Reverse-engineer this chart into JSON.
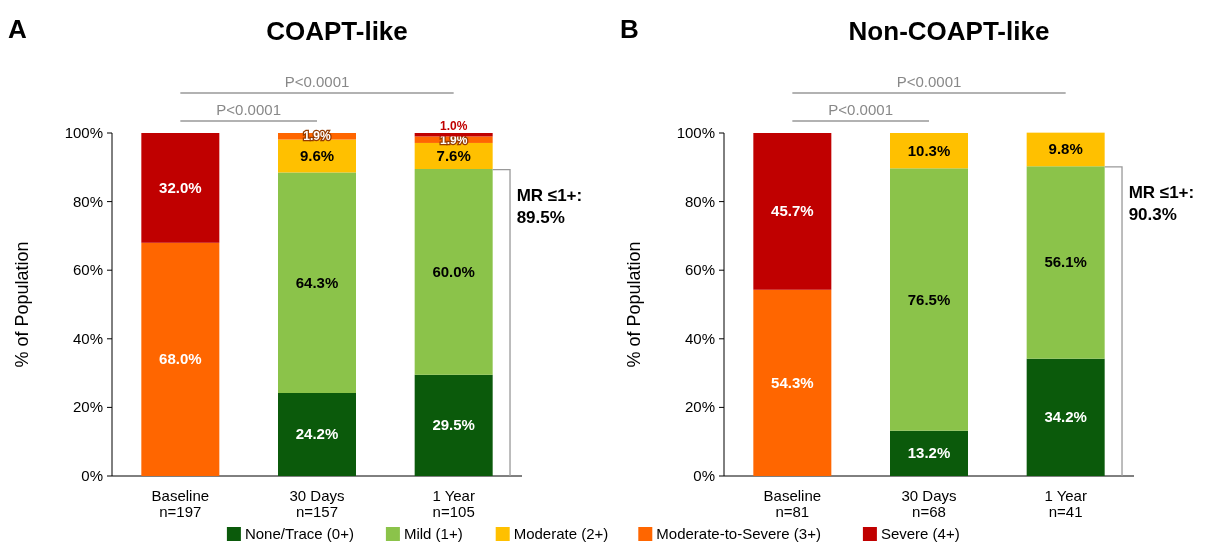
{
  "chart_data": [
    {
      "type": "bar",
      "stacked": true,
      "title": "COAPT-like",
      "ylabel": "% of Population",
      "categories": [
        "Baseline\nn=197",
        "30 Days\nn=157",
        "1 Year\nn=105"
      ],
      "ylim": [
        0,
        100
      ],
      "yticks": [
        {
          "value": 0,
          "label": "0%"
        },
        {
          "value": 20,
          "label": "20%"
        },
        {
          "value": 40,
          "label": "40%"
        },
        {
          "value": 60,
          "label": "60%"
        },
        {
          "value": 80,
          "label": "80%"
        },
        {
          "value": 100,
          "label": "100%"
        }
      ],
      "legend": "bottom",
      "annotations": [
        "A",
        "P<0.0001",
        "P<0.0001",
        "MR ≤1+:\n89.5%"
      ],
      "series": [
        {
          "name": "None/Trace (0+)",
          "color": "#0b5a0b",
          "values": [
            null,
            24.2,
            29.5
          ],
          "value_labels": [
            null,
            "24.2%",
            "29.5%"
          ]
        },
        {
          "name": "Mild (1+)",
          "color": "#8bc34a",
          "values": [
            null,
            64.3,
            60.0
          ],
          "value_labels": [
            null,
            "64.3%",
            "60.0%"
          ]
        },
        {
          "name": "Moderate (2+)",
          "color": "#ffc000",
          "values": [
            null,
            9.6,
            7.6
          ],
          "value_labels": [
            null,
            "9.6%",
            "7.6%"
          ]
        },
        {
          "name": "Moderate-to-Severe (3+)",
          "color": "#ff6600",
          "values": [
            68.0,
            1.9,
            1.9
          ],
          "value_labels": [
            "68.0%",
            "1.9%",
            "1.9%"
          ]
        },
        {
          "name": "Severe (4+)",
          "color": "#c00000",
          "values": [
            32.0,
            null,
            1.0
          ],
          "value_labels": [
            "32.0%",
            null,
            "1.0%"
          ]
        }
      ]
    },
    {
      "type": "bar",
      "stacked": true,
      "title": "Non-COAPT-like",
      "ylabel": "% of Population",
      "categories": [
        "Baseline\nn=81",
        "30 Days\nn=68",
        "1 Year\nn=41"
      ],
      "ylim": [
        0,
        100
      ],
      "yticks": [
        {
          "value": 0,
          "label": "0%"
        },
        {
          "value": 20,
          "label": "20%"
        },
        {
          "value": 40,
          "label": "40%"
        },
        {
          "value": 60,
          "label": "60%"
        },
        {
          "value": 80,
          "label": "80%"
        },
        {
          "value": 100,
          "label": "100%"
        }
      ],
      "legend": "bottom",
      "annotations": [
        "B",
        "P<0.0001",
        "P<0.0001",
        "MR ≤1+:\n90.3%"
      ],
      "series": [
        {
          "name": "None/Trace (0+)",
          "color": "#0b5a0b",
          "values": [
            null,
            13.2,
            34.2
          ],
          "value_labels": [
            null,
            "13.2%",
            "34.2%"
          ]
        },
        {
          "name": "Mild (1+)",
          "color": "#8bc34a",
          "values": [
            null,
            76.5,
            56.1
          ],
          "value_labels": [
            null,
            "76.5%",
            "56.1%"
          ]
        },
        {
          "name": "Moderate (2+)",
          "color": "#ffc000",
          "values": [
            null,
            10.3,
            9.8
          ],
          "value_labels": [
            null,
            "10.3%",
            "9.8%"
          ]
        },
        {
          "name": "Moderate-to-Severe (3+)",
          "color": "#ff6600",
          "values": [
            54.3,
            null,
            null
          ],
          "value_labels": [
            "54.3%",
            null,
            null
          ]
        },
        {
          "name": "Severe (4+)",
          "color": "#c00000",
          "values": [
            45.7,
            null,
            null
          ],
          "value_labels": [
            "45.7%",
            null,
            null
          ]
        }
      ]
    }
  ]
}
